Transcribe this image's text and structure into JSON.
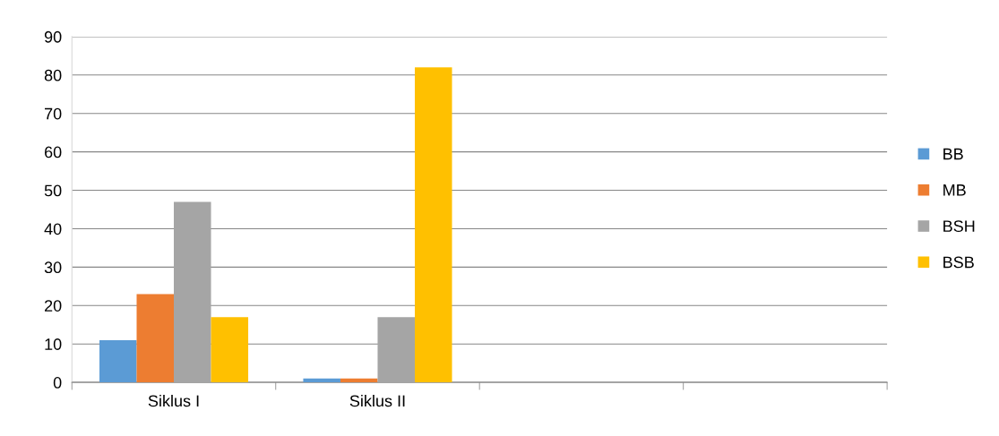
{
  "chart_data": {
    "type": "bar",
    "categories": [
      "Siklus I",
      "Siklus II",
      null,
      null
    ],
    "series": [
      {
        "name": "BB",
        "color": "#5b9bd5",
        "values": [
          11,
          1,
          null,
          null
        ]
      },
      {
        "name": "MB",
        "color": "#ed7d31",
        "values": [
          23,
          1,
          null,
          null
        ]
      },
      {
        "name": "BSH",
        "color": "#a5a5a5",
        "values": [
          47,
          17,
          null,
          null
        ]
      },
      {
        "name": "BSB",
        "color": "#ffc000",
        "values": [
          17,
          82,
          null,
          null
        ]
      }
    ],
    "ylim": [
      0,
      90
    ],
    "yticks": [
      0,
      10,
      20,
      30,
      40,
      50,
      60,
      70,
      80,
      90
    ],
    "grid": "y",
    "legend": "right"
  }
}
